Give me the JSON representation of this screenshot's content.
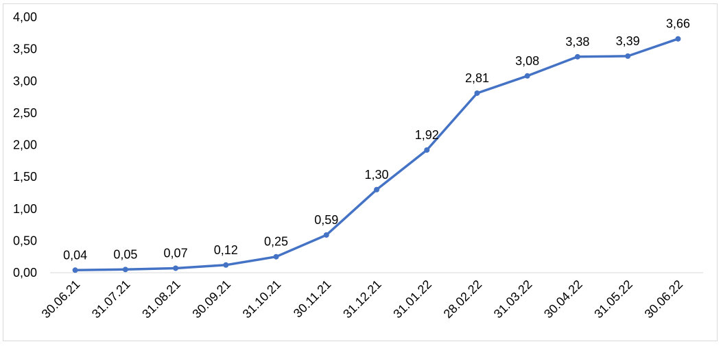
{
  "chart_data": {
    "type": "line",
    "title": "",
    "xlabel": "",
    "ylabel": "",
    "categories": [
      "30.06.21",
      "31.07.21",
      "31.08.21",
      "30.09.21",
      "31.10.21",
      "30.11.21",
      "31.12.21",
      "31.01.22",
      "28.02.22",
      "31.03.22",
      "30.04.22",
      "31.05.22",
      "30.06.22"
    ],
    "series": [
      {
        "values": [
          0.04,
          0.05,
          0.07,
          0.12,
          0.25,
          0.59,
          1.3,
          1.92,
          2.81,
          3.08,
          3.38,
          3.39,
          3.66
        ],
        "labels": [
          "0,04",
          "0,05",
          "0,07",
          "0,12",
          "0,25",
          "0,59",
          "1,30",
          "1,92",
          "2,81",
          "3,08",
          "3,38",
          "3,39",
          "3,66"
        ]
      }
    ],
    "ylim": [
      0,
      4
    ],
    "yticks": [
      0,
      0.5,
      1,
      1.5,
      2,
      2.5,
      3,
      3.5,
      4
    ],
    "ytick_labels": [
      "0,00",
      "0,50",
      "1,00",
      "1,50",
      "2,00",
      "2,50",
      "3,00",
      "3,50",
      "4,00"
    ],
    "grid": false,
    "legend": "none",
    "colors": {
      "line": "#4472c4",
      "axis": "#d9d9d9"
    }
  }
}
